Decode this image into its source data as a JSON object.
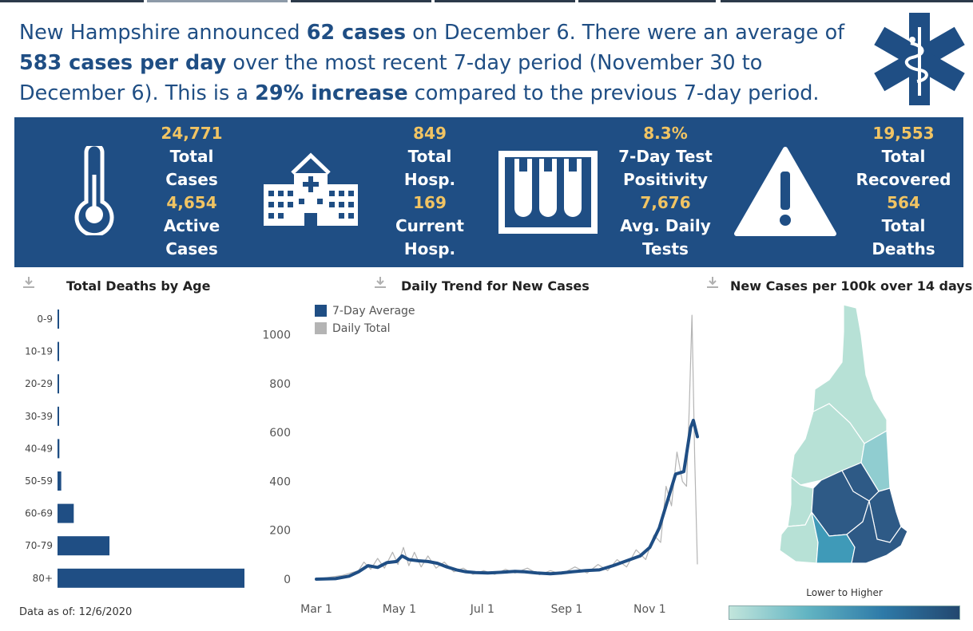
{
  "headline": {
    "p1": "New Hampshire announced ",
    "b1": "62 cases",
    "p2": " on December 6. There were an average of ",
    "b2": "583 cases per day",
    "p3": " over the most recent 7-day period (November 30 to December 6). This is a ",
    "b3": "29% increase",
    "p4": " compared to the previous 7-day period."
  },
  "banner": {
    "cases": {
      "v1": "24,771",
      "l1a": "Total",
      "l1b": "Cases",
      "v2": "4,654",
      "l2a": "Active",
      "l2b": "Cases"
    },
    "hosp": {
      "v1": "849",
      "l1a": "Total",
      "l1b": "Hosp.",
      "v2": "169",
      "l2a": "Current",
      "l2b": "Hosp."
    },
    "tests": {
      "v1": "8.3%",
      "l1a": "7-Day Test",
      "l1b": "Positivity",
      "v2": "7,676",
      "l2a": "Avg. Daily",
      "l2b": "Tests"
    },
    "recovered": {
      "v1": "19,553",
      "l1a": "Total",
      "l1b": "Recovered",
      "v2": "564",
      "l2a": "Total",
      "l2b": "Deaths"
    },
    "colors": {
      "bg": "#1f4e84",
      "value": "#f1c463",
      "label": "#ffffff"
    }
  },
  "panels": {
    "age_title": "Total Deaths by Age",
    "trend_title": "Daily Trend for New Cases",
    "map_title": "New Cases per 100k over 14 days"
  },
  "map_legend": "Lower to Higher",
  "footer_note": "Data as of: 12/6/2020",
  "chart_data": [
    {
      "type": "bar",
      "orientation": "horizontal",
      "title": "Total Deaths by Age",
      "categories": [
        "0-9",
        "10-19",
        "20-29",
        "30-39",
        "40-49",
        "50-59",
        "60-69",
        "70-79",
        "80+"
      ],
      "values": [
        0,
        0,
        1,
        1,
        4,
        8,
        35,
        112,
        403
      ],
      "color": "#1f4e84"
    },
    {
      "type": "line",
      "title": "Daily Trend for New Cases",
      "ylim": [
        0,
        1100
      ],
      "yticks": [
        0,
        200,
        400,
        600,
        800,
        1000
      ],
      "xticks": [
        "Mar 1",
        "May 1",
        "Jul 1",
        "Sep 1",
        "Nov 1"
      ],
      "xlim": [
        "2020-03-01",
        "2020-12-06"
      ],
      "series": [
        {
          "name": "7-Day Average",
          "color": "#1f4e84",
          "points": [
            [
              "2020-03-01",
              0
            ],
            [
              "2020-03-15",
              2
            ],
            [
              "2020-03-25",
              12
            ],
            [
              "2020-04-01",
              30
            ],
            [
              "2020-04-08",
              55
            ],
            [
              "2020-04-15",
              48
            ],
            [
              "2020-04-22",
              68
            ],
            [
              "2020-04-29",
              72
            ],
            [
              "2020-05-03",
              95
            ],
            [
              "2020-05-08",
              80
            ],
            [
              "2020-05-15",
              75
            ],
            [
              "2020-05-22",
              72
            ],
            [
              "2020-05-29",
              65
            ],
            [
              "2020-06-05",
              50
            ],
            [
              "2020-06-12",
              38
            ],
            [
              "2020-06-19",
              30
            ],
            [
              "2020-06-26",
              27
            ],
            [
              "2020-07-05",
              25
            ],
            [
              "2020-07-15",
              28
            ],
            [
              "2020-07-25",
              32
            ],
            [
              "2020-08-01",
              30
            ],
            [
              "2020-08-10",
              25
            ],
            [
              "2020-08-20",
              22
            ],
            [
              "2020-08-28",
              25
            ],
            [
              "2020-09-05",
              30
            ],
            [
              "2020-09-15",
              35
            ],
            [
              "2020-09-25",
              38
            ],
            [
              "2020-10-05",
              55
            ],
            [
              "2020-10-15",
              75
            ],
            [
              "2020-10-25",
              95
            ],
            [
              "2020-11-01",
              130
            ],
            [
              "2020-11-08",
              210
            ],
            [
              "2020-11-14",
              320
            ],
            [
              "2020-11-20",
              430
            ],
            [
              "2020-11-26",
              440
            ],
            [
              "2020-12-01",
              620
            ],
            [
              "2020-12-03",
              650
            ],
            [
              "2020-12-06",
              583
            ]
          ]
        },
        {
          "name": "Daily Total",
          "color": "#b4b4b4",
          "points": [
            [
              "2020-03-01",
              0
            ],
            [
              "2020-03-20",
              15
            ],
            [
              "2020-04-01",
              35
            ],
            [
              "2020-04-05",
              70
            ],
            [
              "2020-04-10",
              40
            ],
            [
              "2020-04-15",
              85
            ],
            [
              "2020-04-20",
              45
            ],
            [
              "2020-04-26",
              110
            ],
            [
              "2020-04-30",
              60
            ],
            [
              "2020-05-04",
              130
            ],
            [
              "2020-05-08",
              55
            ],
            [
              "2020-05-12",
              110
            ],
            [
              "2020-05-17",
              50
            ],
            [
              "2020-05-22",
              95
            ],
            [
              "2020-05-28",
              45
            ],
            [
              "2020-06-03",
              70
            ],
            [
              "2020-06-10",
              30
            ],
            [
              "2020-06-17",
              45
            ],
            [
              "2020-06-24",
              20
            ],
            [
              "2020-07-02",
              35
            ],
            [
              "2020-07-10",
              20
            ],
            [
              "2020-07-18",
              40
            ],
            [
              "2020-07-25",
              25
            ],
            [
              "2020-08-03",
              45
            ],
            [
              "2020-08-12",
              18
            ],
            [
              "2020-08-20",
              35
            ],
            [
              "2020-08-28",
              20
            ],
            [
              "2020-09-07",
              50
            ],
            [
              "2020-09-16",
              25
            ],
            [
              "2020-09-24",
              60
            ],
            [
              "2020-10-01",
              35
            ],
            [
              "2020-10-08",
              80
            ],
            [
              "2020-10-15",
              50
            ],
            [
              "2020-10-22",
              120
            ],
            [
              "2020-10-29",
              80
            ],
            [
              "2020-11-04",
              180
            ],
            [
              "2020-11-09",
              150
            ],
            [
              "2020-11-13",
              380
            ],
            [
              "2020-11-17",
              300
            ],
            [
              "2020-11-21",
              520
            ],
            [
              "2020-11-25",
              400
            ],
            [
              "2020-11-28",
              380
            ],
            [
              "2020-11-30",
              700
            ],
            [
              "2020-12-02",
              1080
            ],
            [
              "2020-12-04",
              500
            ],
            [
              "2020-12-06",
              62
            ]
          ]
        }
      ]
    },
    {
      "type": "map",
      "title": "New Cases per 100k over 14 days",
      "legend": "Lower to Higher",
      "color_scale": [
        "#c2e5dc",
        "#63b5c3",
        "#2e7aa8",
        "#23476f"
      ]
    }
  ]
}
